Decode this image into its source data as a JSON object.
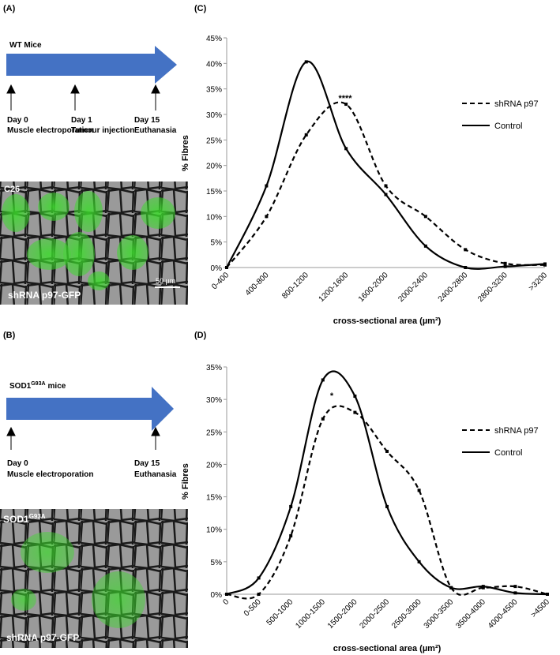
{
  "panels": {
    "a": {
      "label": "(A)",
      "timeline_title": "WT Mice",
      "events": [
        {
          "day": "Day 0",
          "text": "Muscle electroporation"
        },
        {
          "day": "Day 1",
          "text": "Tumour injection"
        },
        {
          "day": "Day 15",
          "text": "Euthanasia"
        }
      ],
      "image_label": "C26",
      "image_caption": "shRNA p97-GFP",
      "scale_bar": "50 µm"
    },
    "b": {
      "label": "(B)",
      "timeline_title": [
        "SOD1",
        "G93A",
        "mice"
      ],
      "events": [
        {
          "day": "Day 0",
          "text": "Muscle electroporation"
        },
        {
          "day": "Day 15",
          "text": "Euthanasia"
        }
      ],
      "image_label": [
        "SOD1",
        "G93A"
      ],
      "image_caption": "shRNA p97-GFP"
    }
  },
  "chart_data": [
    {
      "type": "line",
      "label": "(C)",
      "y_label": "% Fibres",
      "x_label": "cross-sectional area (µm²)",
      "annotation": "****",
      "categories": [
        "0-400",
        "400-800",
        "800-1200",
        "1200-1600",
        "1600-2000",
        "2000-2400",
        "2400-2800",
        "2800-3200",
        ">3200"
      ],
      "series": [
        {
          "name": "shRNA p97",
          "color": "#000000",
          "line_style": "dashed",
          "values": [
            0,
            10,
            26,
            32,
            16,
            10,
            3.5,
            0.8,
            0.5
          ]
        },
        {
          "name": "Control",
          "color": "#000000",
          "line_style": "solid",
          "values": [
            0,
            16,
            40.3,
            23.3,
            14.3,
            4.2,
            0,
            0.2,
            0.7
          ]
        }
      ],
      "ylim": [
        0,
        45
      ],
      "yticks": [
        {
          "value": 0,
          "label": "0%"
        },
        {
          "value": 5,
          "label": "5%"
        },
        {
          "value": 10,
          "label": "10%"
        },
        {
          "value": 15,
          "label": "15%"
        },
        {
          "value": 20,
          "label": "20%"
        },
        {
          "value": 25,
          "label": "25%"
        },
        {
          "value": 30,
          "label": "30%"
        },
        {
          "value": 35,
          "label": "35%"
        },
        {
          "value": 40,
          "label": "40%"
        },
        {
          "value": 45,
          "label": "45%"
        }
      ],
      "grid": false,
      "legend": "right"
    },
    {
      "type": "line",
      "label": "(D)",
      "y_label": "% Fibres",
      "x_label": "cross-sectional area (µm²)",
      "annotation": "*",
      "categories": [
        "0",
        "0-500",
        "500-1000",
        "1000-1500",
        "1500-2000",
        "2000-2500",
        "2500-3000",
        "3000-3500",
        "3500-4000",
        "4000-4500",
        ">4500"
      ],
      "series": [
        {
          "name": "shRNA p97",
          "color": "#000000",
          "line_style": "dashed",
          "values": [
            0,
            0,
            9,
            27,
            28,
            22,
            16,
            1,
            1,
            1.2,
            0
          ]
        },
        {
          "name": "Control",
          "color": "#000000",
          "line_style": "solid",
          "values": [
            0,
            2.5,
            13.5,
            33,
            30.5,
            13.5,
            5,
            1,
            1.2,
            0.2,
            0
          ]
        }
      ],
      "ylim": [
        0,
        35
      ],
      "yticks": [
        {
          "value": 0,
          "label": "0%"
        },
        {
          "value": 5,
          "label": "5%"
        },
        {
          "value": 10,
          "label": "10%"
        },
        {
          "value": 15,
          "label": "15%"
        },
        {
          "value": 20,
          "label": "20%"
        },
        {
          "value": 25,
          "label": "25%"
        },
        {
          "value": 30,
          "label": "30%"
        },
        {
          "value": 35,
          "label": "35%"
        }
      ],
      "grid": false,
      "legend": "right"
    }
  ]
}
